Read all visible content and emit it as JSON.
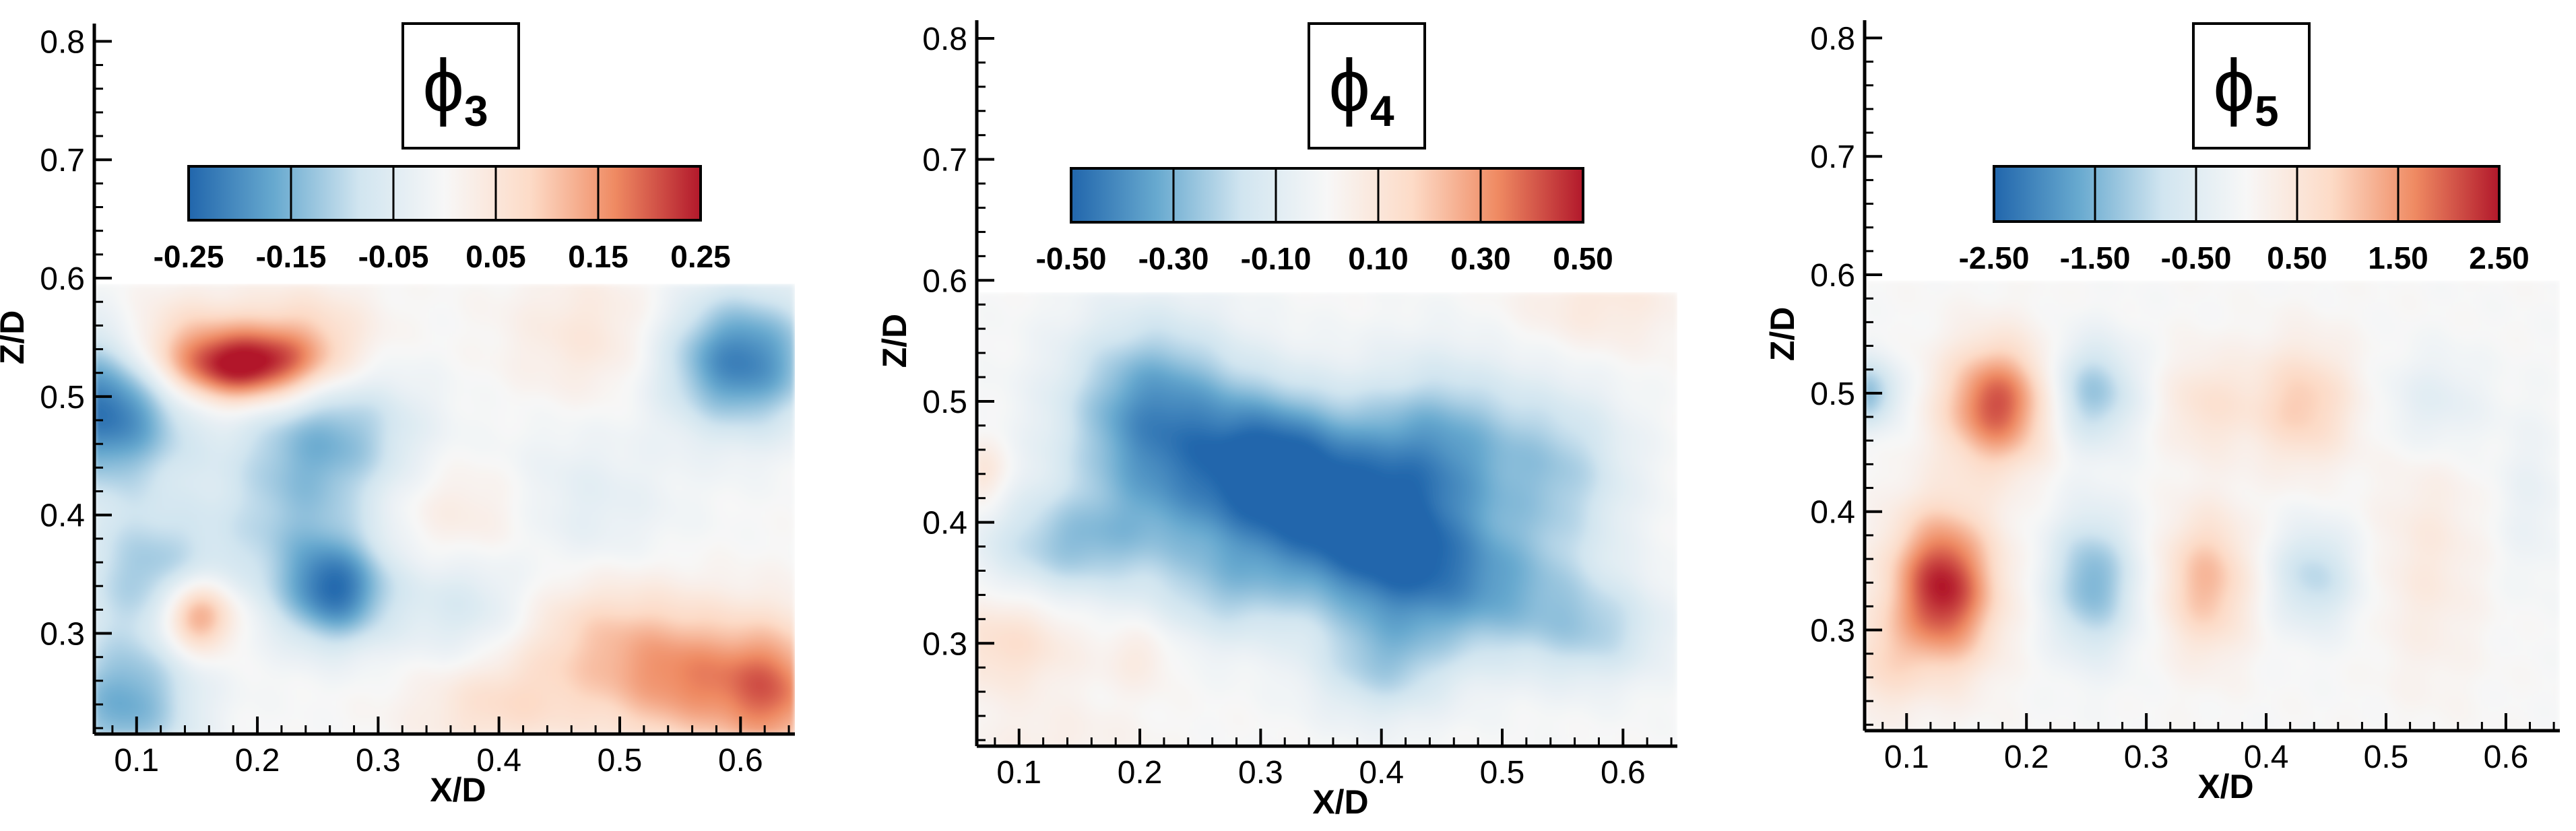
{
  "chart_data": [
    {
      "type": "heatmap",
      "title": "ϕ",
      "title_subscript": "3",
      "xlabel": "X/D",
      "ylabel": "Z/D",
      "xlim": [
        0.065,
        0.645
      ],
      "ylim": [
        0.215,
        0.815
      ],
      "plot_ylim": [
        0.215,
        0.595
      ],
      "xticks": [
        "0.1",
        "0.2",
        "0.3",
        "0.4",
        "0.5",
        "0.6"
      ],
      "xtick_values": [
        0.1,
        0.2,
        0.3,
        0.4,
        0.5,
        0.6
      ],
      "yticks": [
        "0.3",
        "0.4",
        "0.5",
        "0.6",
        "0.7",
        "0.8"
      ],
      "ytick_values": [
        0.3,
        0.4,
        0.5,
        0.6,
        0.7,
        0.8
      ],
      "colorbar": {
        "range": [
          -0.25,
          0.25
        ],
        "ticks": [
          "-0.25",
          "-0.15",
          "-0.05",
          "0.05",
          "0.15",
          "0.25"
        ],
        "tick_values": [
          -0.25,
          -0.15,
          -0.05,
          0.05,
          0.15,
          0.25
        ],
        "colors": [
          "#2166ac",
          "#67a9cf",
          "#d1e5f0",
          "#f7f7f7",
          "#fddbc7",
          "#ef8a62",
          "#b2182b"
        ]
      },
      "blobs": [
        {
          "x": 0.19,
          "z": 0.525,
          "value": 0.25,
          "sx": 0.045,
          "sz": 0.022
        },
        {
          "x": 0.13,
          "z": 0.545,
          "value": 0.09,
          "sx": 0.04,
          "sz": 0.03
        },
        {
          "x": 0.24,
          "z": 0.55,
          "value": 0.08,
          "sx": 0.04,
          "sz": 0.03
        },
        {
          "x": 0.075,
          "z": 0.49,
          "value": -0.24,
          "sx": 0.045,
          "sz": 0.045
        },
        {
          "x": 0.6,
          "z": 0.53,
          "value": -0.22,
          "sx": 0.045,
          "sz": 0.04
        },
        {
          "x": 0.265,
          "z": 0.335,
          "value": -0.2,
          "sx": 0.03,
          "sz": 0.03
        },
        {
          "x": 0.26,
          "z": 0.47,
          "value": -0.13,
          "sx": 0.05,
          "sz": 0.04
        },
        {
          "x": 0.11,
          "z": 0.35,
          "value": -0.12,
          "sx": 0.04,
          "sz": 0.04
        },
        {
          "x": 0.23,
          "z": 0.39,
          "value": -0.1,
          "sx": 0.05,
          "sz": 0.05
        },
        {
          "x": 0.09,
          "z": 0.24,
          "value": -0.16,
          "sx": 0.04,
          "sz": 0.04
        },
        {
          "x": 0.37,
          "z": 0.33,
          "value": -0.08,
          "sx": 0.04,
          "sz": 0.04
        },
        {
          "x": 0.45,
          "z": 0.4,
          "value": -0.06,
          "sx": 0.06,
          "sz": 0.05
        },
        {
          "x": 0.15,
          "z": 0.315,
          "value": 0.19,
          "sx": 0.022,
          "sz": 0.022
        },
        {
          "x": 0.38,
          "z": 0.39,
          "value": 0.08,
          "sx": 0.05,
          "sz": 0.04
        },
        {
          "x": 0.56,
          "z": 0.26,
          "value": 0.15,
          "sx": 0.05,
          "sz": 0.04
        },
        {
          "x": 0.48,
          "z": 0.3,
          "value": 0.08,
          "sx": 0.05,
          "sz": 0.04
        },
        {
          "x": 0.4,
          "z": 0.24,
          "value": 0.07,
          "sx": 0.05,
          "sz": 0.03
        },
        {
          "x": 0.63,
          "z": 0.25,
          "value": 0.14,
          "sx": 0.03,
          "sz": 0.04
        },
        {
          "x": 0.48,
          "z": 0.55,
          "value": 0.05,
          "sx": 0.05,
          "sz": 0.04
        }
      ]
    },
    {
      "type": "heatmap",
      "title": "ϕ",
      "title_subscript": "4",
      "xlabel": "X/D",
      "ylabel": "Z/D",
      "xlim": [
        0.065,
        0.645
      ],
      "ylim": [
        0.215,
        0.815
      ],
      "plot_ylim": [
        0.215,
        0.59
      ],
      "xticks": [
        "0.1",
        "0.2",
        "0.3",
        "0.4",
        "0.5",
        "0.6"
      ],
      "xtick_values": [
        0.1,
        0.2,
        0.3,
        0.4,
        0.5,
        0.6
      ],
      "yticks": [
        "0.3",
        "0.4",
        "0.5",
        "0.6",
        "0.7",
        "0.8"
      ],
      "ytick_values": [
        0.3,
        0.4,
        0.5,
        0.6,
        0.7,
        0.8
      ],
      "colorbar": {
        "range": [
          -0.5,
          0.5
        ],
        "ticks": [
          "-0.50",
          "-0.30",
          "-0.10",
          "0.10",
          "0.30",
          "0.50"
        ],
        "tick_values": [
          -0.5,
          -0.3,
          -0.1,
          0.1,
          0.3,
          0.5
        ],
        "colors": [
          "#2166ac",
          "#67a9cf",
          "#d1e5f0",
          "#f7f7f7",
          "#fddbc7",
          "#ef8a62",
          "#b2182b"
        ]
      },
      "blobs": [
        {
          "x": 0.21,
          "z": 0.5,
          "value": -0.32,
          "sx": 0.05,
          "sz": 0.05
        },
        {
          "x": 0.25,
          "z": 0.43,
          "value": -0.25,
          "sx": 0.07,
          "sz": 0.05
        },
        {
          "x": 0.14,
          "z": 0.38,
          "value": -0.22,
          "sx": 0.05,
          "sz": 0.03
        },
        {
          "x": 0.36,
          "z": 0.41,
          "value": -0.38,
          "sx": 0.06,
          "sz": 0.05
        },
        {
          "x": 0.42,
          "z": 0.36,
          "value": -0.3,
          "sx": 0.05,
          "sz": 0.04
        },
        {
          "x": 0.45,
          "z": 0.46,
          "value": -0.3,
          "sx": 0.05,
          "sz": 0.05
        },
        {
          "x": 0.31,
          "z": 0.46,
          "value": -0.22,
          "sx": 0.04,
          "sz": 0.04
        },
        {
          "x": 0.55,
          "z": 0.44,
          "value": -0.2,
          "sx": 0.04,
          "sz": 0.05
        },
        {
          "x": 0.5,
          "z": 0.34,
          "value": -0.22,
          "sx": 0.05,
          "sz": 0.04
        },
        {
          "x": 0.4,
          "z": 0.28,
          "value": -0.2,
          "sx": 0.04,
          "sz": 0.03
        },
        {
          "x": 0.27,
          "z": 0.34,
          "value": -0.15,
          "sx": 0.04,
          "sz": 0.03
        },
        {
          "x": 0.58,
          "z": 0.31,
          "value": -0.18,
          "sx": 0.04,
          "sz": 0.03
        },
        {
          "x": 0.09,
          "z": 0.3,
          "value": 0.14,
          "sx": 0.04,
          "sz": 0.03
        },
        {
          "x": 0.07,
          "z": 0.44,
          "value": 0.12,
          "sx": 0.015,
          "sz": 0.02
        },
        {
          "x": 0.2,
          "z": 0.29,
          "value": 0.08,
          "sx": 0.02,
          "sz": 0.02
        },
        {
          "x": 0.58,
          "z": 0.58,
          "value": 0.09,
          "sx": 0.05,
          "sz": 0.03
        },
        {
          "x": 0.13,
          "z": 0.22,
          "value": 0.05,
          "sx": 0.05,
          "sz": 0.02
        }
      ]
    },
    {
      "type": "heatmap",
      "title": "ϕ",
      "title_subscript": "5",
      "xlabel": "X/D",
      "ylabel": "Z/D",
      "xlim": [
        0.065,
        0.645
      ],
      "ylim": [
        0.215,
        0.815
      ],
      "plot_ylim": [
        0.215,
        0.595
      ],
      "xticks": [
        "0.1",
        "0.2",
        "0.3",
        "0.4",
        "0.5",
        "0.6"
      ],
      "xtick_values": [
        0.1,
        0.2,
        0.3,
        0.4,
        0.5,
        0.6
      ],
      "yticks": [
        "0.3",
        "0.4",
        "0.5",
        "0.6",
        "0.7",
        "0.8"
      ],
      "ytick_values": [
        0.3,
        0.4,
        0.5,
        0.6,
        0.7,
        0.8
      ],
      "colorbar": {
        "range": [
          -2.5,
          2.5
        ],
        "ticks": [
          "-2.50",
          "-1.50",
          "-0.50",
          "0.50",
          "1.50",
          "2.50"
        ],
        "tick_values": [
          -2.5,
          -1.5,
          -0.5,
          0.5,
          1.5,
          2.5
        ],
        "colors": [
          "#2166ac",
          "#67a9cf",
          "#d1e5f0",
          "#f7f7f7",
          "#fddbc7",
          "#ef8a62",
          "#b2182b"
        ]
      },
      "blobs": [
        {
          "x": 0.175,
          "z": 0.49,
          "value": 2.1,
          "sx": 0.03,
          "sz": 0.035
        },
        {
          "x": 0.13,
          "z": 0.335,
          "value": 2.5,
          "sx": 0.03,
          "sz": 0.045
        },
        {
          "x": 0.065,
          "z": 0.5,
          "value": -1.4,
          "sx": 0.02,
          "sz": 0.02
        },
        {
          "x": 0.255,
          "z": 0.5,
          "value": -1.3,
          "sx": 0.025,
          "sz": 0.03
        },
        {
          "x": 0.255,
          "z": 0.34,
          "value": -1.5,
          "sx": 0.025,
          "sz": 0.04
        },
        {
          "x": 0.35,
          "z": 0.34,
          "value": 1.2,
          "sx": 0.025,
          "sz": 0.04
        },
        {
          "x": 0.35,
          "z": 0.49,
          "value": 0.6,
          "sx": 0.025,
          "sz": 0.03
        },
        {
          "x": 0.43,
          "z": 0.49,
          "value": 1.0,
          "sx": 0.03,
          "sz": 0.035
        },
        {
          "x": 0.44,
          "z": 0.345,
          "value": -1.0,
          "sx": 0.025,
          "sz": 0.03
        },
        {
          "x": 0.54,
          "z": 0.49,
          "value": -0.5,
          "sx": 0.03,
          "sz": 0.03
        },
        {
          "x": 0.535,
          "z": 0.36,
          "value": 0.4,
          "sx": 0.03,
          "sz": 0.07
        },
        {
          "x": 0.62,
          "z": 0.41,
          "value": -0.3,
          "sx": 0.02,
          "sz": 0.05
        },
        {
          "x": 0.08,
          "z": 0.27,
          "value": 0.6,
          "sx": 0.02,
          "sz": 0.03
        }
      ]
    }
  ]
}
